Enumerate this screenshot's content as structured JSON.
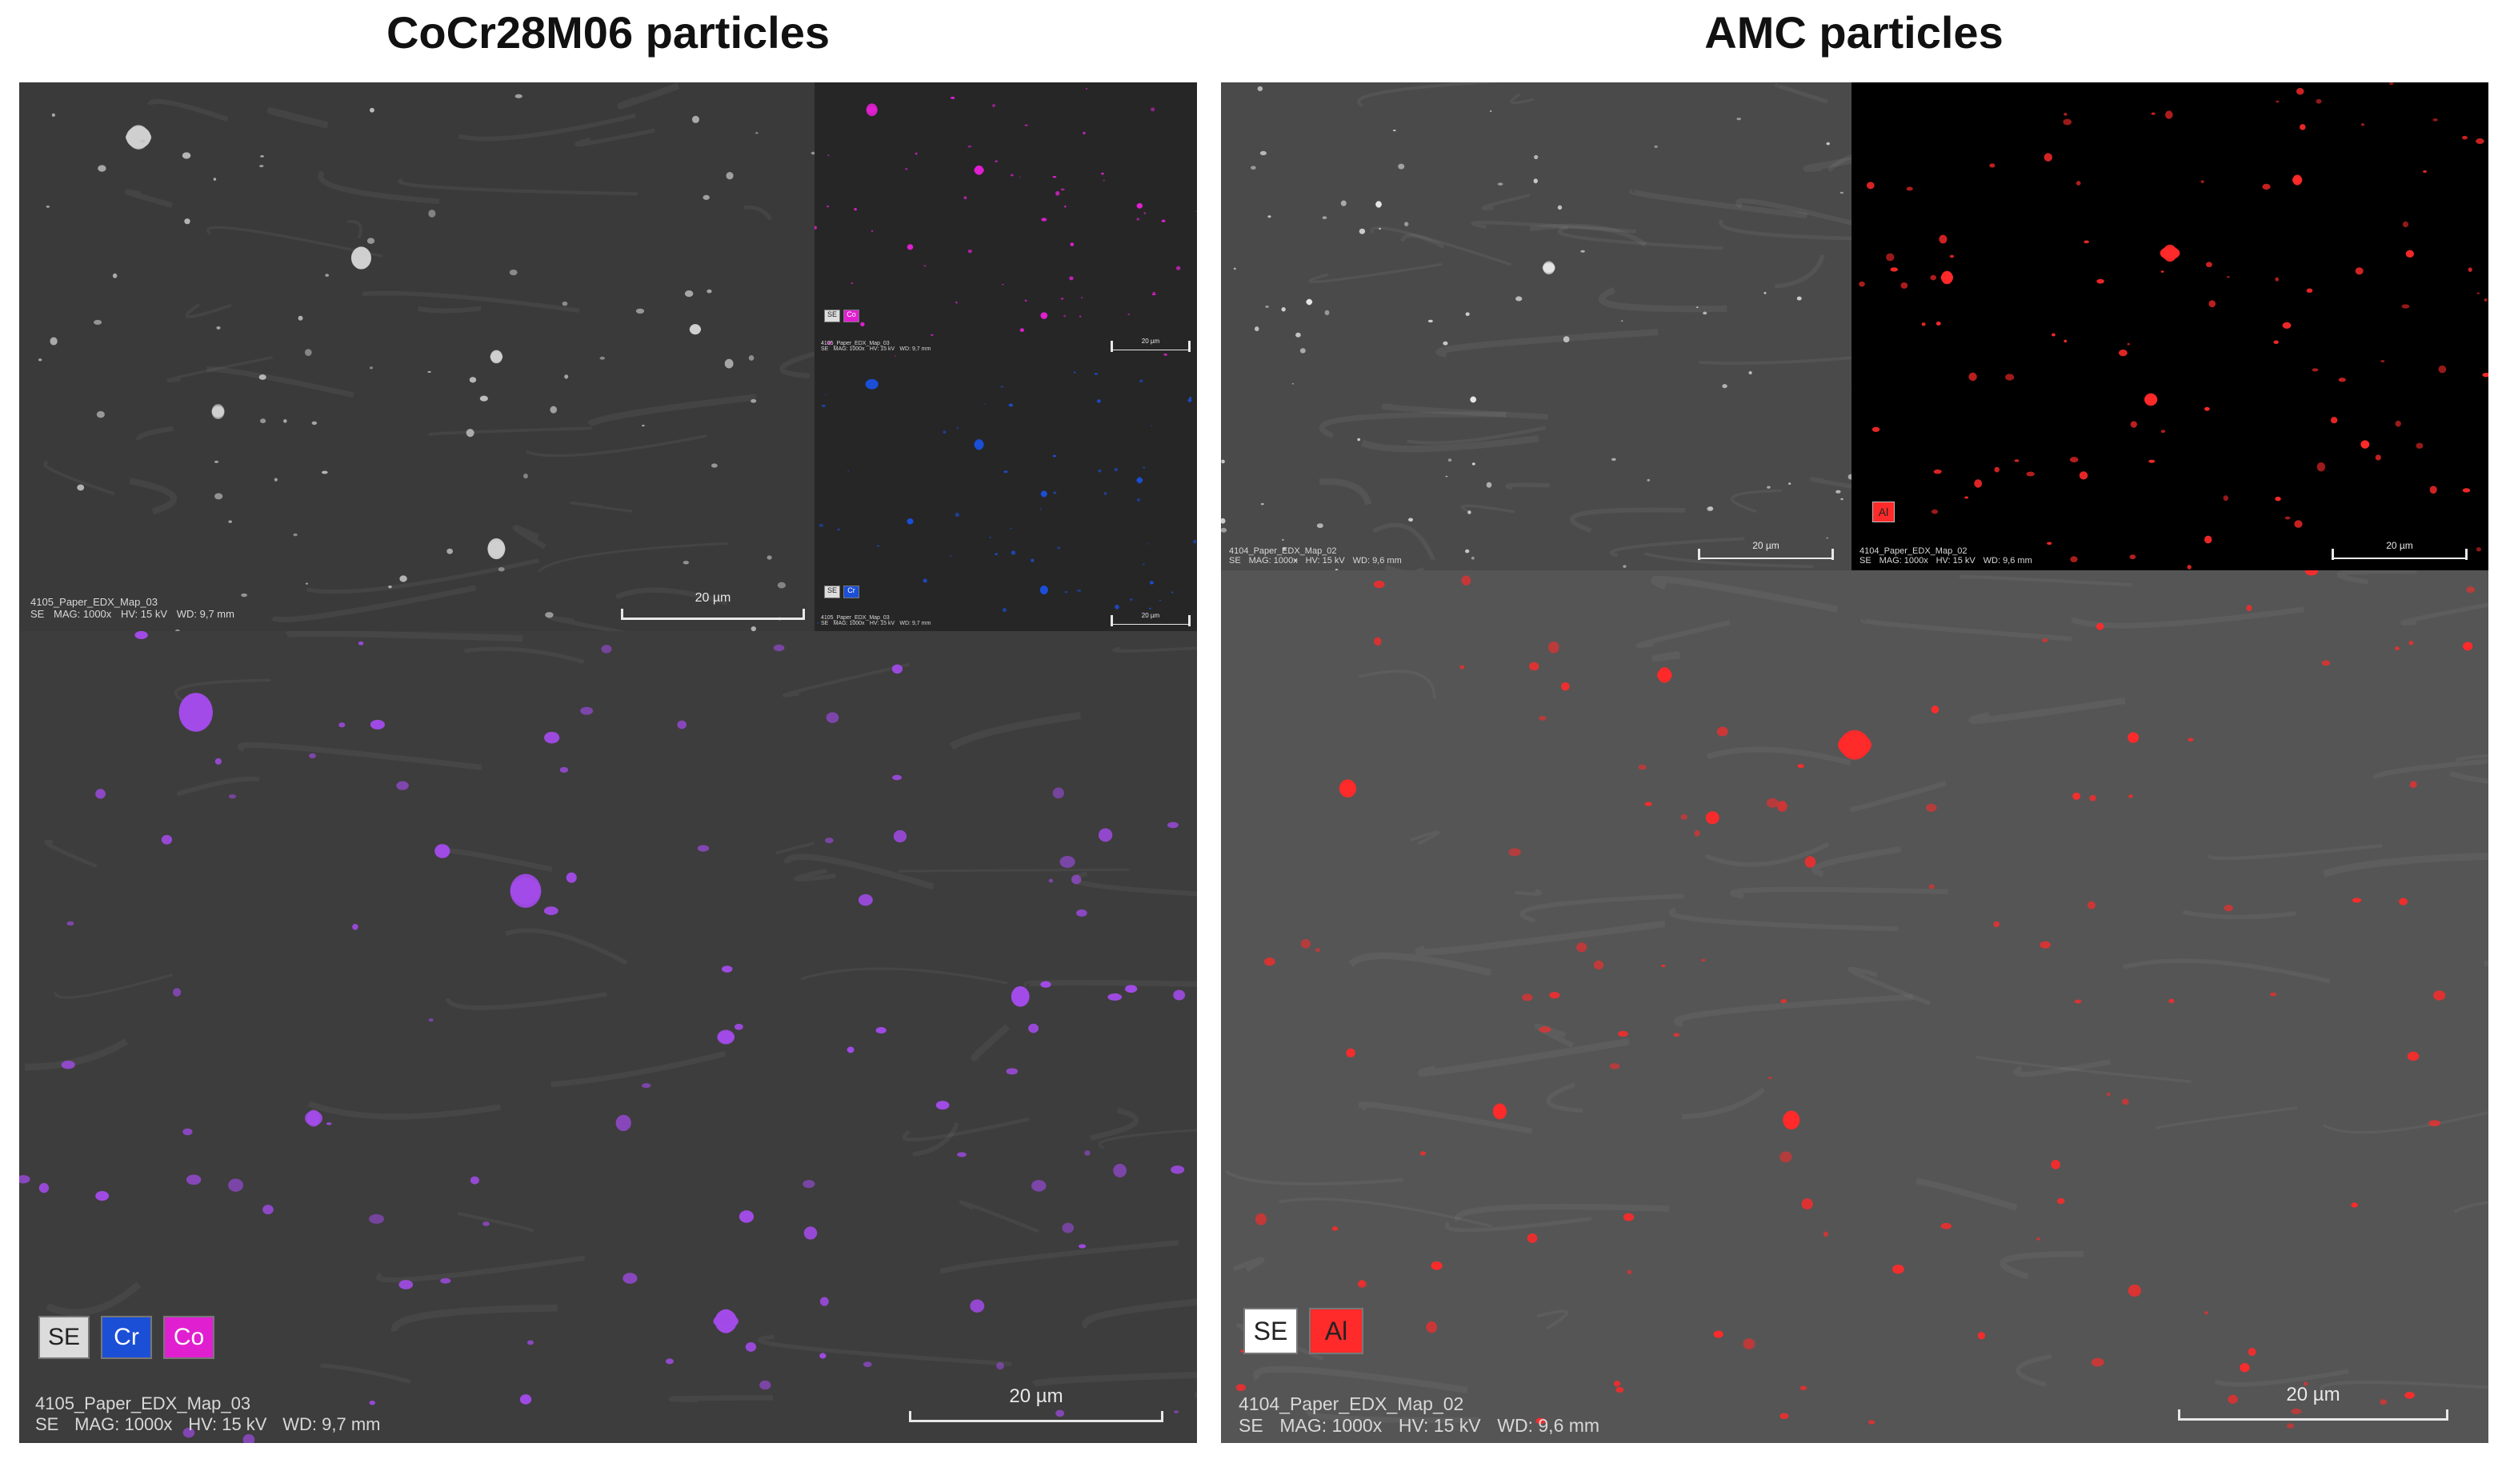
{
  "titles": {
    "left": "CoCr28M06 particles",
    "right": "AMC particles"
  },
  "colors": {
    "cr": "#1b4fd6",
    "co": "#e020d0",
    "overlay_purple": "#a24be8",
    "al": "#ff2a2a",
    "se": "#e0e0e0"
  },
  "left": {
    "small_meta": {
      "name": "4105_Paper_EDX_Map_03",
      "se": "SE",
      "mag": "MAG: 1000x",
      "hv": "HV: 15 kV",
      "wd": "WD: 9,7 mm",
      "scale": "20 µm"
    },
    "main_meta": {
      "name": "4105_Paper_EDX_Map_03",
      "se": "SE",
      "mag": "MAG: 1000x",
      "hv": "HV: 15 kV",
      "wd": "WD: 9,7 mm",
      "scale": "20 µm"
    },
    "legend": [
      "SE",
      "Cr",
      "Co"
    ]
  },
  "right": {
    "small_meta": {
      "name": "4104_Paper_EDX_Map_02",
      "se": "SE",
      "mag": "MAG: 1000x",
      "hv": "HV: 15 kV",
      "wd": "WD: 9,6 mm",
      "scale": "20 µm"
    },
    "al_meta": {
      "name": "4104_Paper_EDX_Map_02",
      "se": "SE",
      "mag": "MAG: 1000x",
      "hv": "HV: 15 kV",
      "wd": "WD: 9,6 mm",
      "scale": "20 µm",
      "label": "Al"
    },
    "main_meta": {
      "name": "4104_Paper_EDX_Map_02",
      "se": "SE",
      "mag": "MAG: 1000x",
      "hv": "HV: 15 kV",
      "wd": "WD: 9,6 mm",
      "scale": "20 µm"
    },
    "legend": [
      "SE",
      "Al"
    ]
  }
}
